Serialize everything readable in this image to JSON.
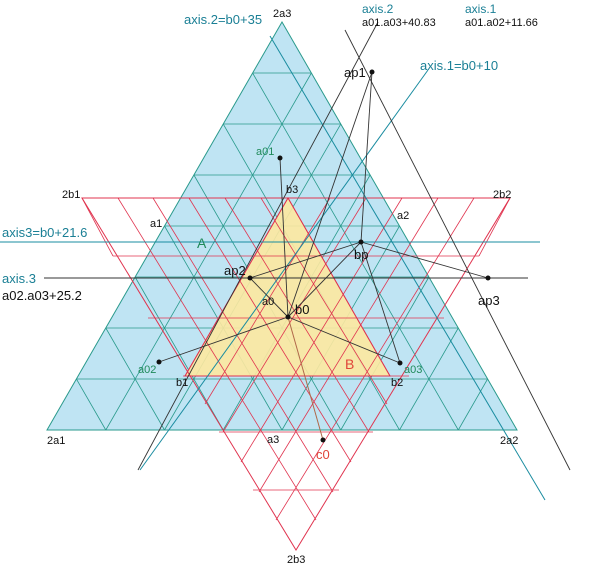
{
  "labels": {
    "axis2_b0": "axis.2=b0+35",
    "axis2": "axis.2",
    "axis2_expr": "a01.a03+40.83",
    "axis1": "axis.1",
    "axis1_expr": "a01.a02+11.66",
    "axis1_b0": "axis.1=b0+10",
    "axis3_b0": "axis3=b0+21.6",
    "axis3": "axis.3",
    "axis3_expr": "a02.a03+25.2",
    "v2a3": "2a3",
    "v2a1": "2a1",
    "v2a2": "2a2",
    "v2b1": "2b1",
    "v2b2": "2b2",
    "v2b3": "2b3",
    "ap1": "ap1",
    "ap2": "ap2",
    "ap3": "ap3",
    "bp": "bp",
    "a01": "a01",
    "a02": "a02",
    "a03": "a03",
    "b3": "b3",
    "a1": "a1",
    "a2": "a2",
    "a3": "a3",
    "a0": "a0",
    "b0": "b0",
    "b1": "b1",
    "b2": "b2",
    "c0": "c0",
    "regionA": "A",
    "regionB": "B"
  },
  "colors": {
    "blue_fill": "#bfe4f3",
    "teal_line": "#2a9a8c",
    "red_line": "#e0344f",
    "yellow_fill": "#fde8a0",
    "axis_teal": "#1a8ca0",
    "dark_line": "#333333",
    "brown_line": "#b0684a"
  }
}
